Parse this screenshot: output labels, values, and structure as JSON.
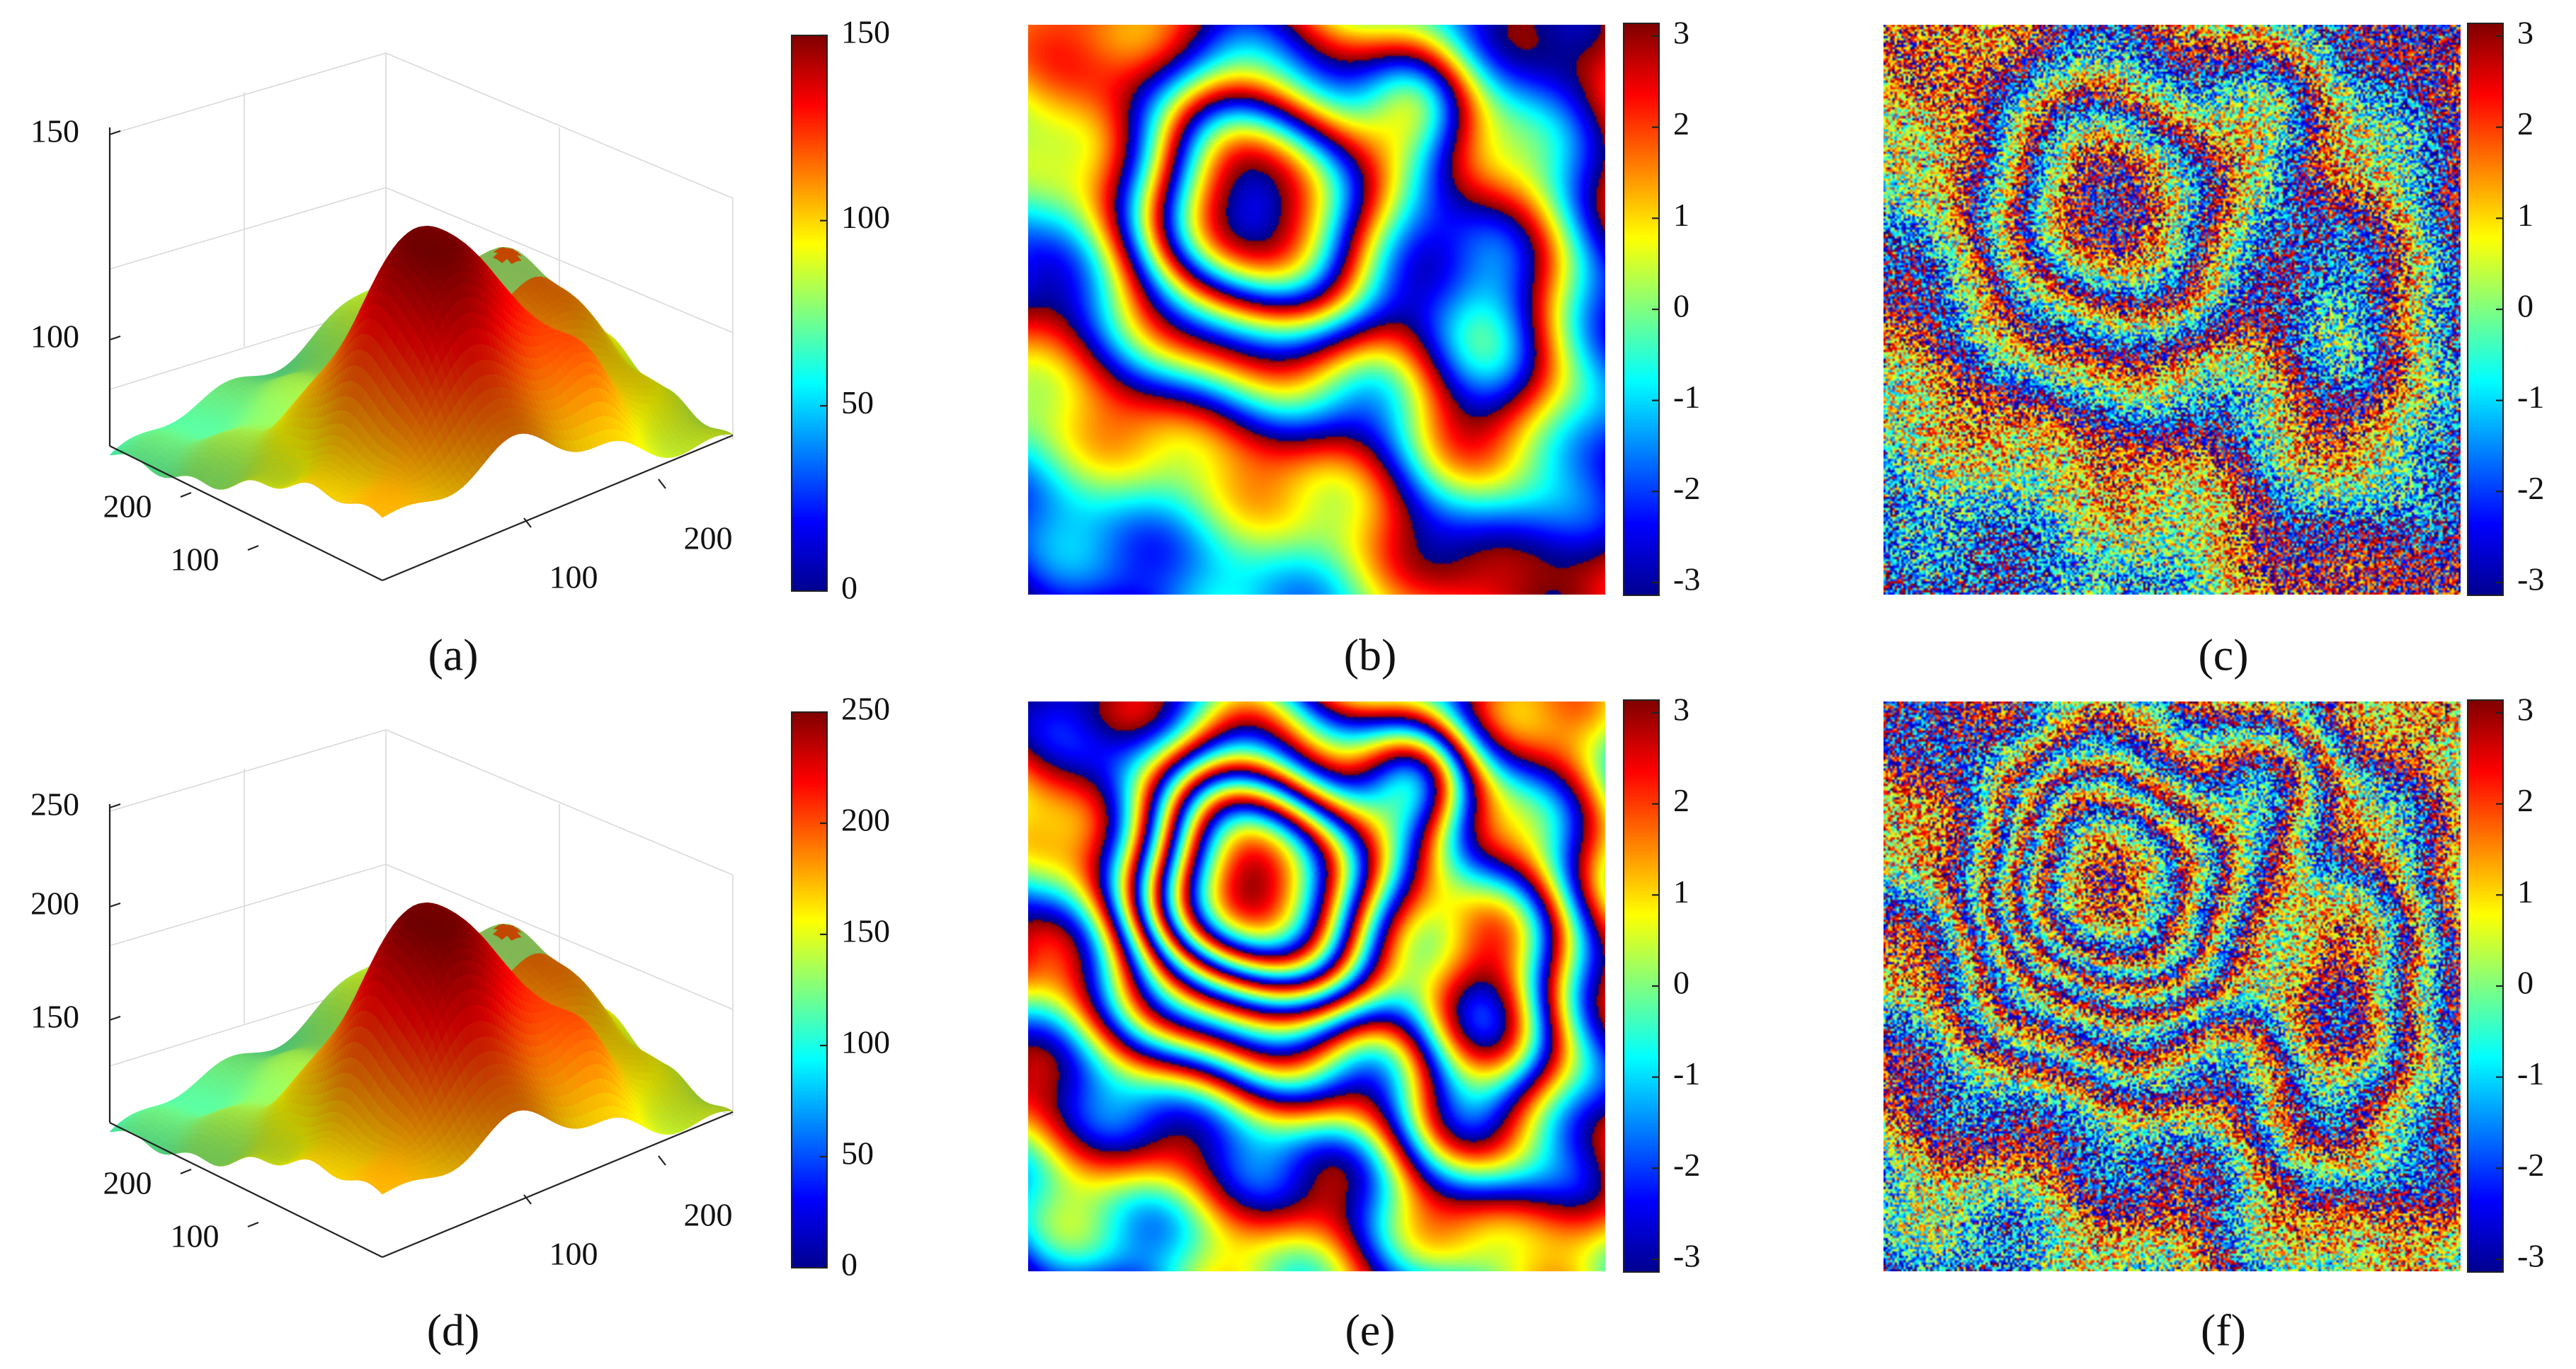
{
  "chart_data": [
    {
      "panel": "a",
      "type": "surface",
      "caption": "(a)",
      "z_ticks": [
        "150",
        "100"
      ],
      "y_ticks": [
        "200",
        "100"
      ],
      "x_ticks": [
        "100",
        "200"
      ],
      "zlim": [
        70,
        150
      ],
      "colorbar": {
        "ticks": [
          "150",
          "100",
          "50",
          "0"
        ],
        "range": [
          0,
          150
        ]
      }
    },
    {
      "panel": "b",
      "type": "heatmap",
      "caption": "(b)",
      "pattern": "wrapped-phase fringes",
      "fringe_density": 1.0,
      "noise": 0.0,
      "colorbar": {
        "ticks": [
          "3",
          "2",
          "1",
          "0",
          "-1",
          "-2",
          "-3"
        ],
        "range": [
          -3.14,
          3.14
        ]
      }
    },
    {
      "panel": "c",
      "type": "heatmap",
      "caption": "(c)",
      "pattern": "noisy wrapped-phase fringes",
      "fringe_density": 1.0,
      "noise": 0.6,
      "colorbar": {
        "ticks": [
          "3",
          "2",
          "1",
          "0",
          "-1",
          "-2",
          "-3"
        ],
        "range": [
          -3.14,
          3.14
        ]
      }
    },
    {
      "panel": "d",
      "type": "surface",
      "caption": "(d)",
      "z_ticks": [
        "250",
        "200",
        "150"
      ],
      "y_ticks": [
        "200",
        "100"
      ],
      "x_ticks": [
        "100",
        "200"
      ],
      "zlim": [
        120,
        250
      ],
      "colorbar": {
        "ticks": [
          "250",
          "200",
          "150",
          "100",
          "50",
          "0"
        ],
        "range": [
          0,
          250
        ]
      }
    },
    {
      "panel": "e",
      "type": "heatmap",
      "caption": "(e)",
      "pattern": "wrapped-phase fringes",
      "fringe_density": 1.7,
      "noise": 0.0,
      "colorbar": {
        "ticks": [
          "3",
          "2",
          "1",
          "0",
          "-1",
          "-2",
          "-3"
        ],
        "range": [
          -3.14,
          3.14
        ]
      }
    },
    {
      "panel": "f",
      "type": "heatmap",
      "caption": "(f)",
      "pattern": "noisy wrapped-phase fringes",
      "fringe_density": 1.7,
      "noise": 0.6,
      "colorbar": {
        "ticks": [
          "3",
          "2",
          "1",
          "0",
          "-1",
          "-2",
          "-3"
        ],
        "range": [
          -3.14,
          3.14
        ]
      }
    }
  ]
}
